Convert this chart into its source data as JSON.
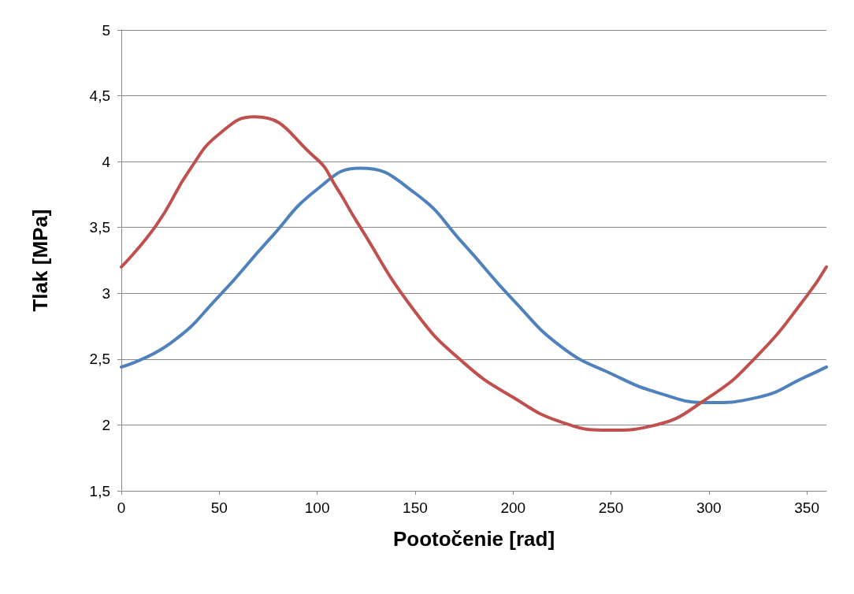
{
  "chart_data": {
    "type": "line",
    "xlabel": "Pootočenie [rad]",
    "ylabel": "Tlak [MPa]",
    "xlim": [
      0,
      360
    ],
    "xticks": [
      0,
      50,
      100,
      150,
      200,
      250,
      300,
      350
    ],
    "ylim": [
      1.5,
      5
    ],
    "yticks": [
      {
        "value": 1.5,
        "label": "1,5"
      },
      2,
      {
        "value": 2.5,
        "label": "2,5"
      },
      3,
      {
        "value": 3.5,
        "label": "3,5"
      },
      4,
      {
        "value": 4.5,
        "label": "4,5"
      },
      5
    ],
    "grid": "y",
    "marker": "none",
    "line_style": "solid",
    "series": [
      {
        "color": "#4f81bd",
        "x": [
          0,
          25,
          50,
          75,
          100,
          122,
          150,
          175,
          200,
          225,
          250,
          275,
          300,
          325,
          350,
          360
        ],
        "values": [
          2.44,
          2.62,
          2.98,
          3.4,
          3.79,
          3.95,
          3.76,
          3.37,
          2.95,
          2.59,
          2.39,
          2.24,
          2.17,
          2.21,
          2.37,
          2.44
        ]
      },
      {
        "color": "#c0504d",
        "x": [
          0,
          18,
          35,
          50,
          68,
          99,
          110,
          120,
          150,
          175,
          200,
          225,
          250,
          270,
          300,
          325,
          350,
          360
        ],
        "values": [
          3.2,
          3.52,
          3.94,
          4.21,
          4.34,
          4.03,
          3.8,
          3.55,
          2.86,
          2.47,
          2.21,
          2.02,
          1.96,
          1.99,
          2.21,
          2.53,
          2.98,
          3.2
        ]
      }
    ]
  }
}
